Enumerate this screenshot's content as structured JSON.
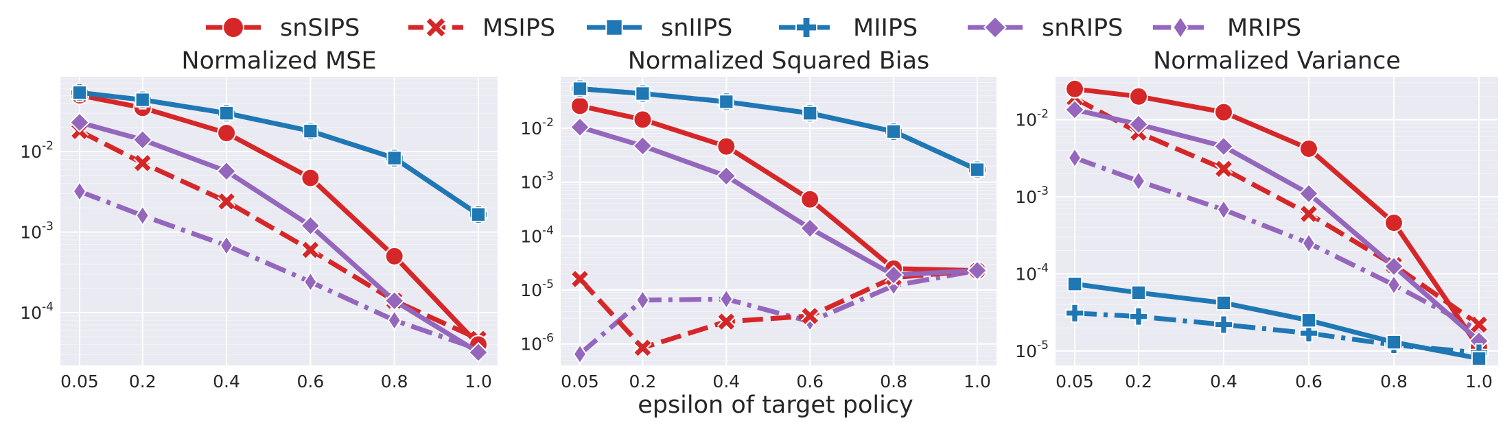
{
  "legend": {
    "position": "top-center",
    "items": [
      {
        "label": "snSIPS",
        "color": "#d62728",
        "marker": "circle",
        "dash": "solid"
      },
      {
        "label": "MSIPS",
        "color": "#d62728",
        "marker": "x",
        "dash": "dashed"
      },
      {
        "label": "snIIPS",
        "color": "#1f77b4",
        "marker": "square",
        "dash": "solid"
      },
      {
        "label": "MIIPS",
        "color": "#1f77b4",
        "marker": "plus",
        "dash": "dashdot"
      },
      {
        "label": "snRIPS",
        "color": "#9467bd",
        "marker": "diamond",
        "dash": "solid"
      },
      {
        "label": "MRIPS",
        "color": "#9467bd",
        "marker": "thin_diamond",
        "dash": "dashdot"
      }
    ]
  },
  "xlabel": "epsilon of target policy",
  "chart_data": [
    {
      "type": "line",
      "title": "Normalized MSE",
      "yscale": "log",
      "ylim": [
        2.2e-05,
        0.085
      ],
      "yticks": [
        0.0001,
        0.001,
        0.01
      ],
      "yticklabels": [
        "10^-4",
        "10^-3",
        "10^-2"
      ],
      "x": [
        0.05,
        0.2,
        0.4,
        0.6,
        0.8,
        1.0
      ],
      "xticklabels": [
        "0.05",
        "0.2",
        "0.4",
        "0.6",
        "0.8",
        "1.0"
      ],
      "grid": true,
      "series": [
        {
          "name": "snSIPS",
          "values": [
            0.05,
            0.035,
            0.017,
            0.0047,
            0.0005,
            4e-05
          ]
        },
        {
          "name": "MSIPS",
          "values": [
            0.018,
            0.0072,
            0.0024,
            0.0006,
            0.00014,
            4.7e-05
          ]
        },
        {
          "name": "snIIPS",
          "values": [
            0.054,
            0.044,
            0.03,
            0.018,
            0.0083,
            0.00165
          ]
        },
        {
          "name": "MIIPS",
          "values": [
            0.054,
            0.044,
            0.03,
            0.018,
            0.0083,
            0.00165
          ]
        },
        {
          "name": "snRIPS",
          "values": [
            0.023,
            0.014,
            0.0057,
            0.0012,
            0.00014,
            3.2e-05
          ]
        },
        {
          "name": "MRIPS",
          "values": [
            0.0032,
            0.0016,
            0.00068,
            0.00024,
            8e-05,
            3.5e-05
          ]
        }
      ]
    },
    {
      "type": "line",
      "title": "Normalized Squared Bias",
      "yscale": "log",
      "ylim": [
        4e-07,
        0.09
      ],
      "yticks": [
        1e-06,
        1e-05,
        0.0001,
        0.001,
        0.01
      ],
      "yticklabels": [
        "10^-6",
        "10^-5",
        "10^-4",
        "10^-3",
        "10^-2"
      ],
      "x": [
        0.05,
        0.2,
        0.4,
        0.6,
        0.8,
        1.0
      ],
      "xticklabels": [
        "0.05",
        "0.2",
        "0.4",
        "0.6",
        "0.8",
        "1.0"
      ],
      "grid": true,
      "series": [
        {
          "name": "snSIPS",
          "values": [
            0.026,
            0.0145,
            0.0046,
            0.00048,
            2.5e-05,
            2.3e-05
          ]
        },
        {
          "name": "MSIPS",
          "values": [
            1.6e-05,
            8.5e-07,
            2.6e-06,
            3.3e-06,
            1.7e-05,
            2.3e-05
          ]
        },
        {
          "name": "snIIPS",
          "values": [
            0.054,
            0.044,
            0.031,
            0.019,
            0.0087,
            0.0017
          ]
        },
        {
          "name": "MIIPS",
          "values": [
            0.054,
            0.044,
            0.031,
            0.019,
            0.0087,
            0.0017
          ]
        },
        {
          "name": "snRIPS",
          "values": [
            0.0105,
            0.0047,
            0.0013,
            0.00014,
            1.9e-05,
            2.3e-05
          ]
        },
        {
          "name": "MRIPS",
          "values": [
            6.5e-07,
            6.5e-06,
            6.8e-06,
            2.6e-06,
            1.2e-05,
            2.3e-05
          ]
        }
      ]
    },
    {
      "type": "line",
      "title": "Normalized Variance",
      "yscale": "log",
      "ylim": [
        6.5e-06,
        0.036
      ],
      "yticks": [
        1e-05,
        0.0001,
        0.001,
        0.01
      ],
      "yticklabels": [
        "10^-5",
        "10^-4",
        "10^-3",
        "10^-2"
      ],
      "x": [
        0.05,
        0.2,
        0.4,
        0.6,
        0.8,
        1.0
      ],
      "xticklabels": [
        "0.05",
        "0.2",
        "0.4",
        "0.6",
        "0.8",
        "1.0"
      ],
      "grid": true,
      "series": [
        {
          "name": "snSIPS",
          "values": [
            0.025,
            0.02,
            0.0125,
            0.0042,
            0.00046,
            1.1e-05
          ]
        },
        {
          "name": "MSIPS",
          "values": [
            0.019,
            0.0068,
            0.0023,
            0.0006,
            0.00013,
            2.2e-05
          ]
        },
        {
          "name": "snIIPS",
          "values": [
            7.4e-05,
            5.7e-05,
            4.2e-05,
            2.5e-05,
            1.3e-05,
            8e-06
          ]
        },
        {
          "name": "MIIPS",
          "values": [
            3.1e-05,
            2.8e-05,
            2.2e-05,
            1.7e-05,
            1.2e-05,
            9.5e-06
          ]
        },
        {
          "name": "snRIPS",
          "values": [
            0.0135,
            0.0087,
            0.0045,
            0.0011,
            0.000125,
            1.35e-05
          ]
        },
        {
          "name": "MRIPS",
          "values": [
            0.0032,
            0.0016,
            0.00068,
            0.00025,
            7.2e-05,
            1.85e-05
          ]
        }
      ]
    }
  ]
}
